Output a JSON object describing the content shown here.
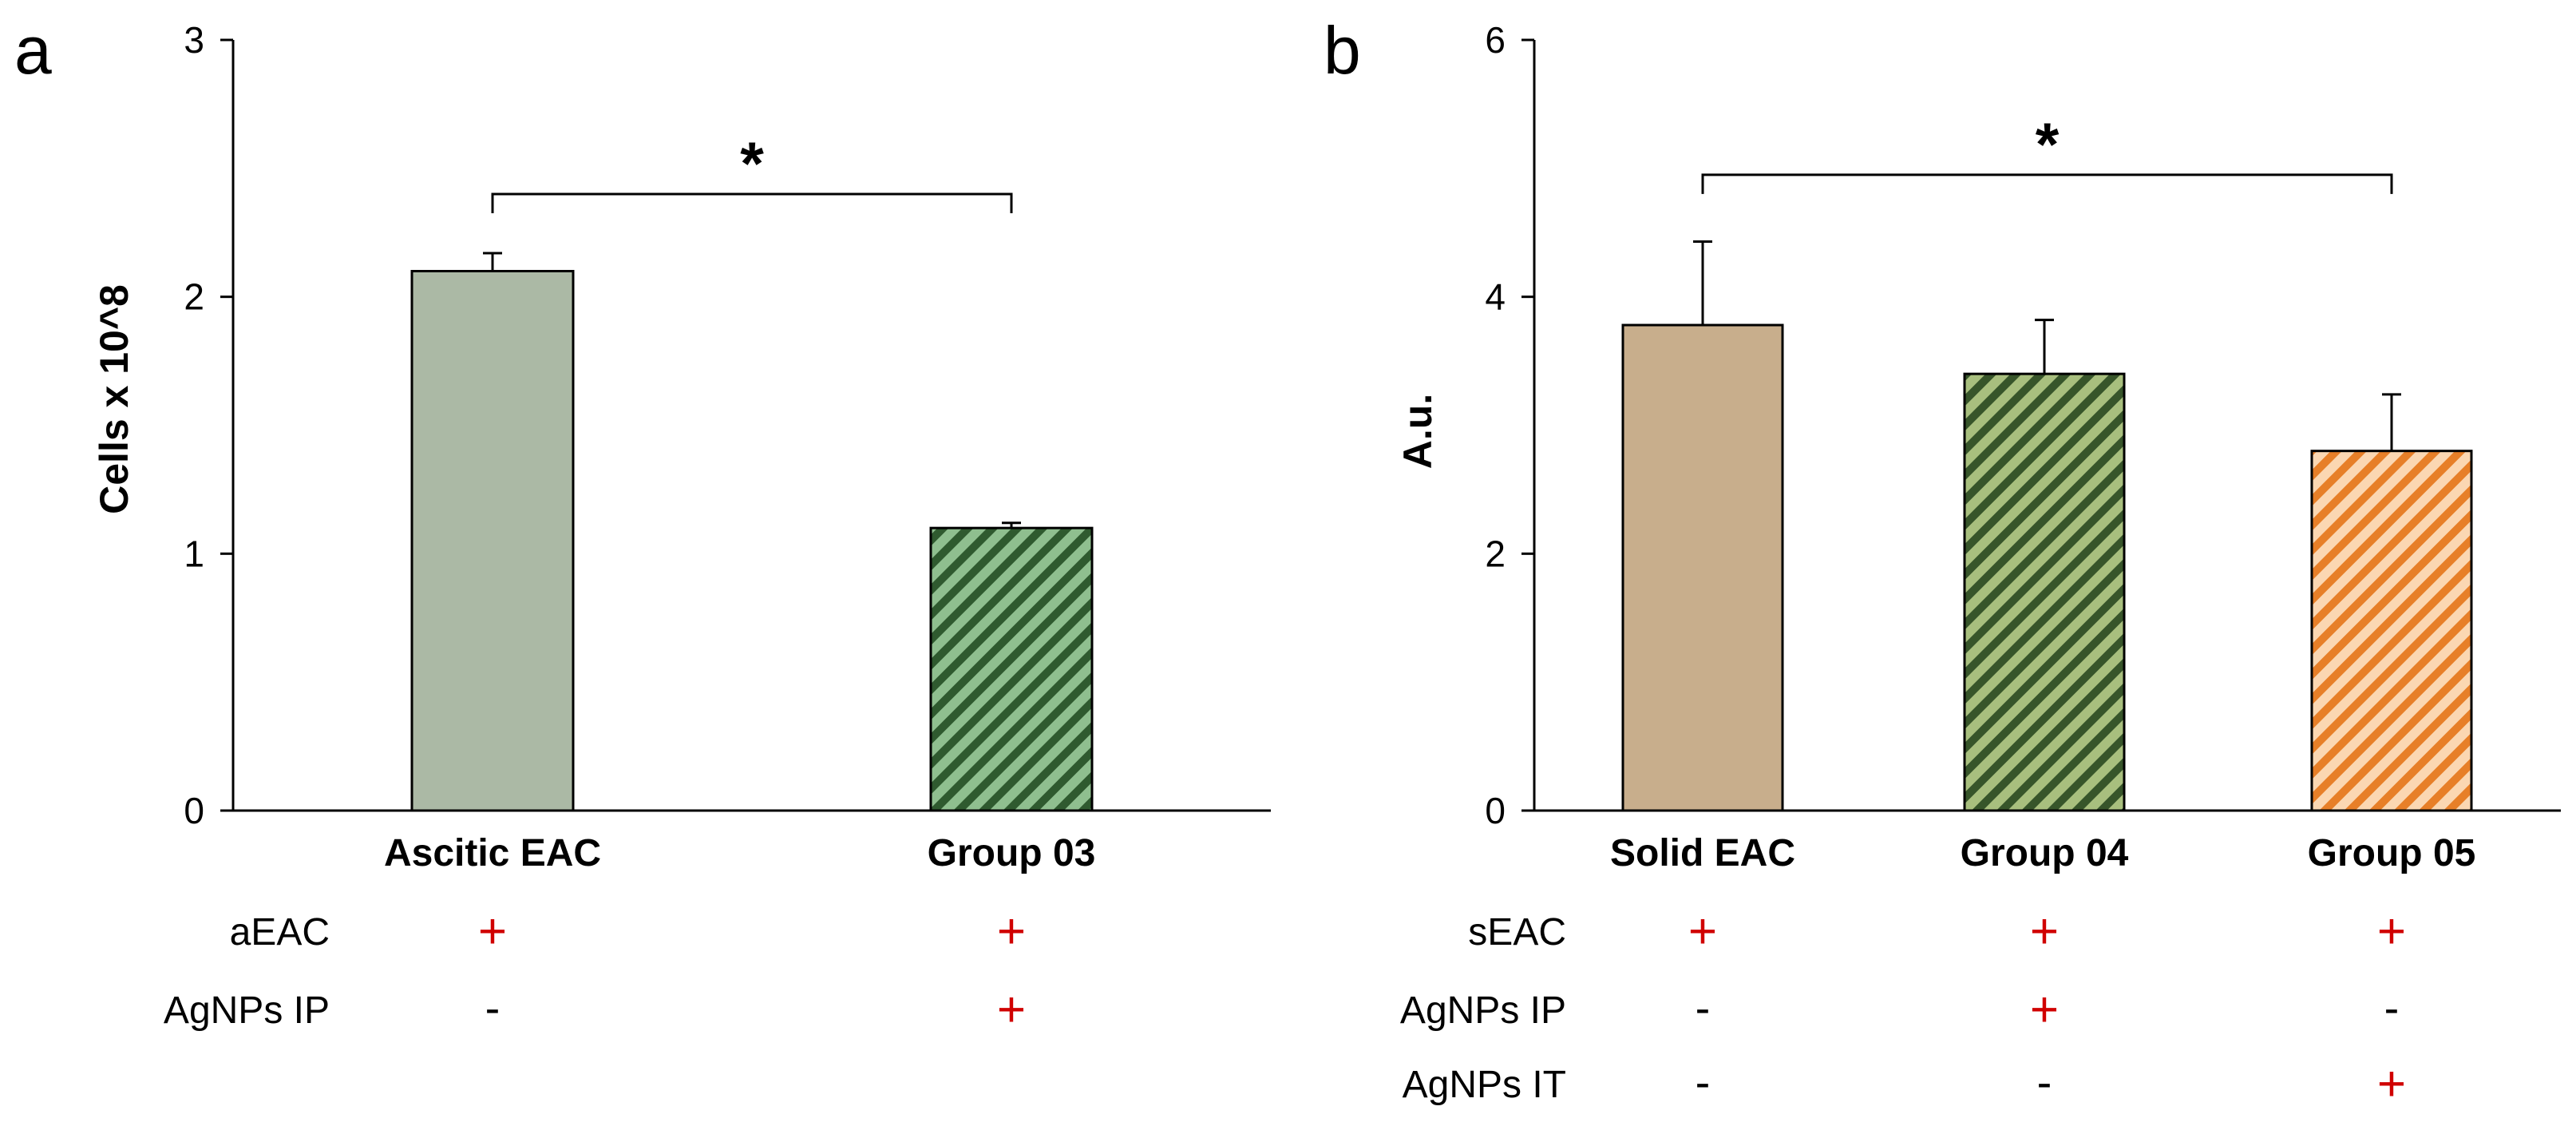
{
  "chart_data": [
    {
      "type": "bar",
      "panel": "a",
      "ylabel": "Cells x 10^8",
      "ylim": [
        0,
        3
      ],
      "yticks": [
        "0",
        "1",
        "2",
        "3"
      ],
      "categories": [
        "Ascitic EAC",
        "Group 03"
      ],
      "values": [
        2.1,
        1.1
      ],
      "errors": [
        0.07,
        0.02
      ],
      "fills": [
        "solid",
        "hatch"
      ],
      "colors": [
        "#abb9a5",
        "#7aa07a"
      ],
      "significance": {
        "label": "*",
        "from": 0,
        "to": 1,
        "y": 2.4
      },
      "conditions": [
        {
          "label": "aEAC",
          "marks": [
            "+",
            "+"
          ]
        },
        {
          "label": "AgNPs IP",
          "marks": [
            "-",
            "+"
          ]
        }
      ]
    },
    {
      "type": "bar",
      "panel": "b",
      "ylabel": "A.u.",
      "ylim": [
        0,
        6
      ],
      "yticks": [
        "0",
        "2",
        "4",
        "6"
      ],
      "categories": [
        "Solid EAC",
        "Group 04",
        "Group 05"
      ],
      "values": [
        3.78,
        3.4,
        2.8
      ],
      "errors": [
        0.65,
        0.42,
        0.44
      ],
      "fills": [
        "solid",
        "hatch",
        "hatch"
      ],
      "colors": [
        "#c8ae8c",
        "#8fa76a",
        "#f0a060"
      ],
      "significance": {
        "label": "*",
        "from": 0,
        "to": 2,
        "y": 4.95
      },
      "conditions": [
        {
          "label": "sEAC",
          "marks": [
            "+",
            "+",
            "+"
          ]
        },
        {
          "label": "AgNPs IP",
          "marks": [
            "-",
            "+",
            "-"
          ]
        },
        {
          "label": "AgNPs IT",
          "marks": [
            "-",
            "-",
            "+"
          ]
        }
      ]
    }
  ]
}
